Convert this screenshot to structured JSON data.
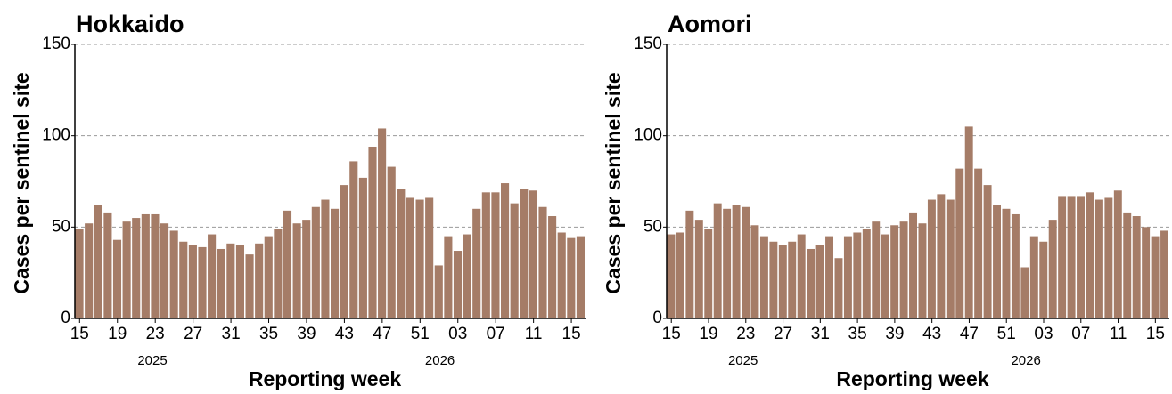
{
  "chart_data": [
    {
      "type": "bar",
      "title": "Hokkaido",
      "xlabel": "Reporting week",
      "ylabel": "Cases per sentinel site",
      "categories": [
        "15",
        null,
        null,
        null,
        "19",
        null,
        null,
        null,
        "23",
        null,
        null,
        null,
        "27",
        null,
        null,
        null,
        "31",
        null,
        null,
        null,
        "35",
        null,
        null,
        null,
        "39",
        null,
        null,
        null,
        "43",
        null,
        null,
        null,
        "47",
        null,
        null,
        null,
        "51",
        null,
        null,
        null,
        "03",
        null,
        null,
        null,
        "07",
        null,
        null,
        null,
        "11",
        null,
        null,
        null,
        "15",
        null
      ],
      "values": [
        49,
        52,
        62,
        58,
        43,
        53,
        55,
        57,
        57,
        52,
        48,
        42,
        40,
        39,
        46,
        38,
        41,
        40,
        35,
        41,
        45,
        49,
        59,
        52,
        54,
        61,
        65,
        60,
        73,
        86,
        77,
        94,
        104,
        83,
        71,
        66,
        65,
        66,
        29,
        45,
        37,
        46,
        60,
        69,
        69,
        74,
        63,
        71,
        70,
        61,
        56,
        47,
        44,
        45
      ],
      "annotations": [
        "2025",
        "2026"
      ],
      "color": "#a57c67",
      "ylim": [
        0,
        150
      ],
      "yticks": [
        0,
        50,
        100,
        150
      ],
      "grid": true
    },
    {
      "type": "bar",
      "title": "Aomori",
      "xlabel": "Reporting week",
      "ylabel": "Cases per sentinel site",
      "categories": [
        "15",
        null,
        null,
        null,
        "19",
        null,
        null,
        null,
        "23",
        null,
        null,
        null,
        "27",
        null,
        null,
        null,
        "31",
        null,
        null,
        null,
        "35",
        null,
        null,
        null,
        "39",
        null,
        null,
        null,
        "43",
        null,
        null,
        null,
        "47",
        null,
        null,
        null,
        "51",
        null,
        null,
        null,
        "03",
        null,
        null,
        null,
        "07",
        null,
        null,
        null,
        "11",
        null,
        null,
        null,
        "15",
        null
      ],
      "values": [
        46,
        47,
        59,
        54,
        49,
        63,
        60,
        62,
        61,
        51,
        45,
        42,
        40,
        42,
        46,
        38,
        40,
        45,
        33,
        45,
        47,
        49,
        53,
        46,
        51,
        53,
        58,
        52,
        65,
        68,
        65,
        82,
        105,
        82,
        73,
        62,
        60,
        57,
        28,
        45,
        42,
        54,
        67,
        67,
        67,
        69,
        65,
        66,
        70,
        58,
        56,
        50,
        45,
        48
      ],
      "annotations": [
        "2025",
        "2026"
      ],
      "color": "#a57c67",
      "ylim": [
        0,
        150
      ],
      "yticks": [
        0,
        50,
        100,
        150
      ],
      "grid": true
    }
  ]
}
